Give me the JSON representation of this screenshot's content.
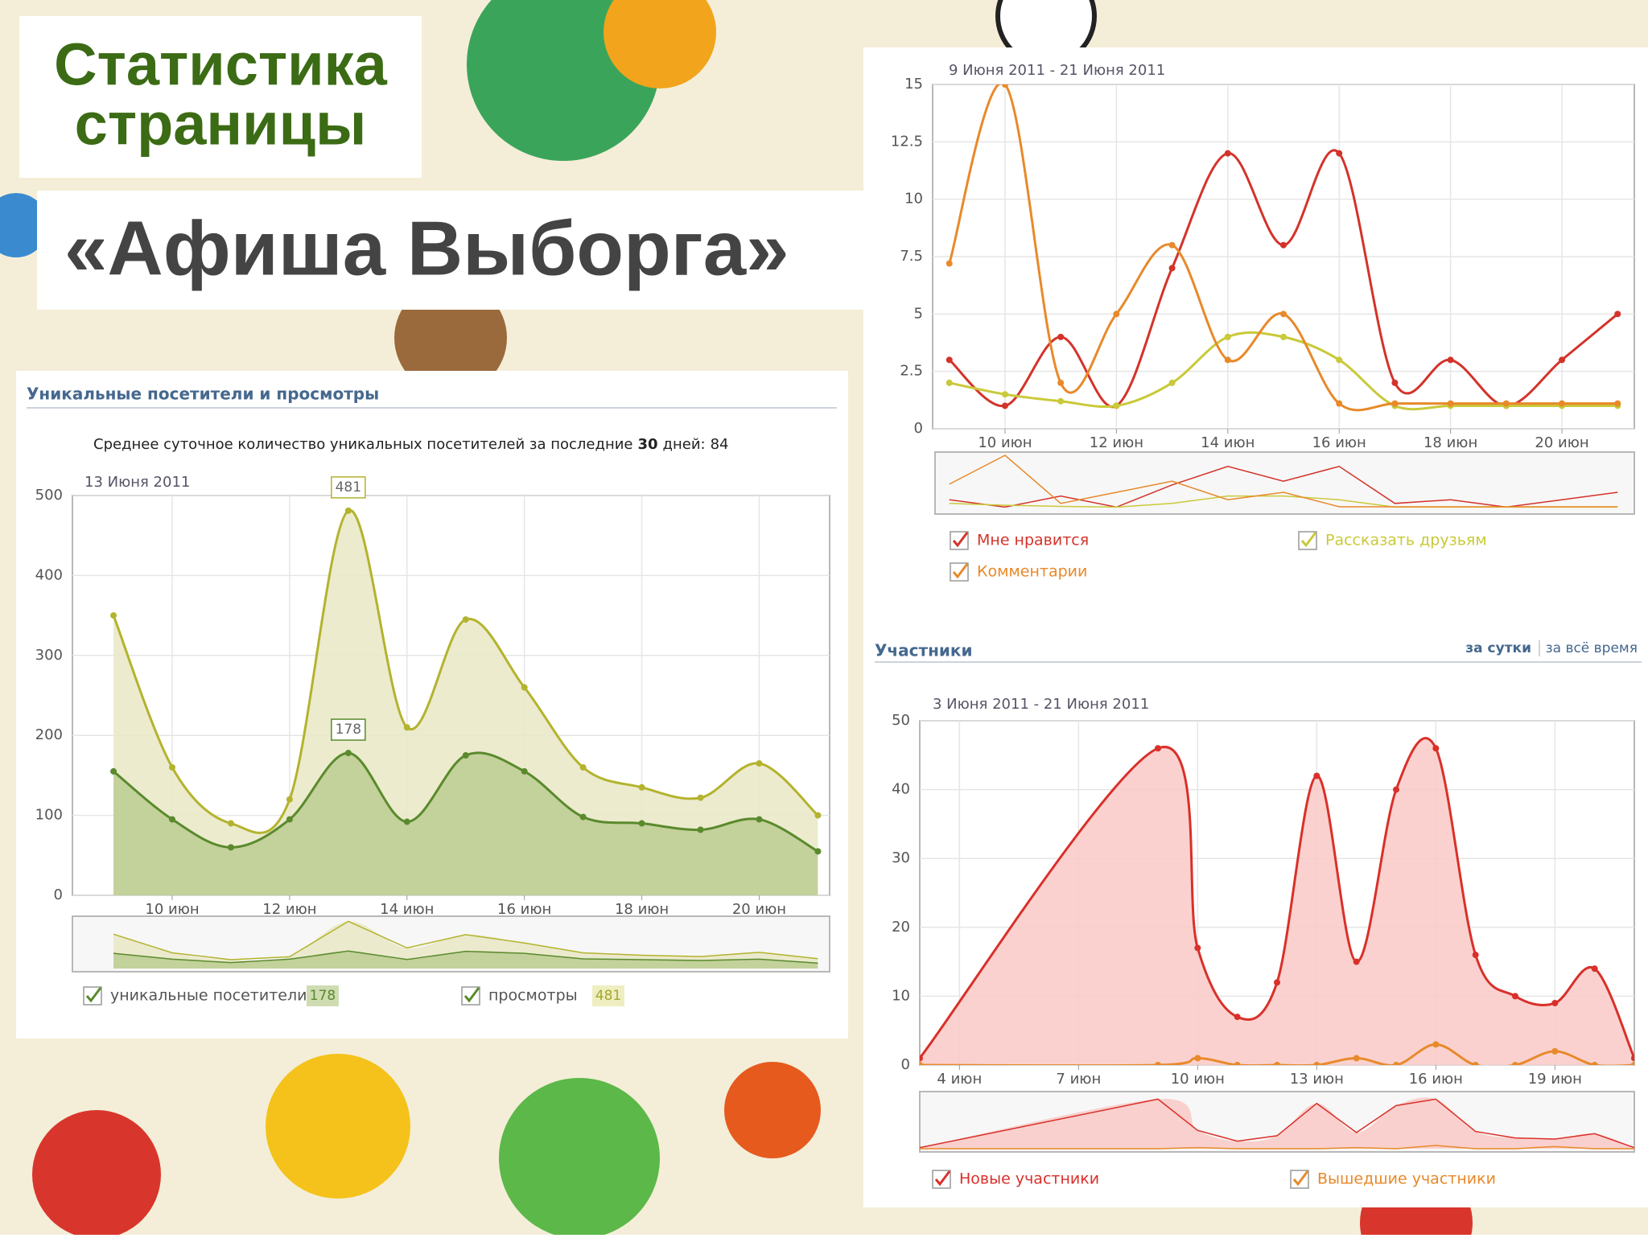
{
  "header": {
    "title_line1": "Статистика",
    "title_line2": "страницы",
    "subtitle": "«Афиша Выборга»"
  },
  "chart_data": [
    {
      "type": "area",
      "title": "Уникальные посетители и просмотры",
      "note": {
        "text_before": "Среднее суточное количество уникальных посетителей за последние",
        "days": 30,
        "text_after": "дней:",
        "average": 84
      },
      "date_label": "13 Июня 2011",
      "x": [
        9,
        10,
        11,
        12,
        13,
        14,
        15,
        16,
        17,
        18,
        19,
        20,
        21
      ],
      "xlim": [
        8.3,
        21.2
      ],
      "xticks": [
        {
          "value": 10,
          "label": "10 июн"
        },
        {
          "value": 12,
          "label": "12 июн"
        },
        {
          "value": 14,
          "label": "14 июн"
        },
        {
          "value": 16,
          "label": "16 июн"
        },
        {
          "value": 18,
          "label": "18 июн"
        },
        {
          "value": 20,
          "label": "20 июн"
        }
      ],
      "ylim": [
        0,
        500
      ],
      "yticks": [
        0,
        100,
        200,
        300,
        400,
        500
      ],
      "grid": true,
      "series": [
        {
          "name": "просмотры",
          "color": "#b3b32e",
          "area_color": "#e9e7c6",
          "values": [
            350,
            160,
            90,
            120,
            481,
            210,
            345,
            260,
            160,
            135,
            122,
            165,
            100
          ]
        },
        {
          "name": "уникальные посетители",
          "color": "#5a8a2c",
          "area_color": "#bccd92",
          "values": [
            155,
            95,
            60,
            95,
            178,
            92,
            175,
            155,
            98,
            90,
            82,
            95,
            55
          ]
        }
      ]
    },
    {
      "type": "line",
      "date_label": "9 Июня 2011 - 21 Июня 2011",
      "x": [
        9,
        10,
        11,
        12,
        13,
        14,
        15,
        16,
        17,
        18,
        19,
        20,
        21
      ],
      "xlim": [
        8.7,
        21.3
      ],
      "xticks": [
        {
          "value": 10,
          "label": "10 июн"
        },
        {
          "value": 12,
          "label": "12 июн"
        },
        {
          "value": 14,
          "label": "14 июн"
        },
        {
          "value": 16,
          "label": "16 июн"
        },
        {
          "value": 18,
          "label": "18 июн"
        },
        {
          "value": 20,
          "label": "20 июн"
        }
      ],
      "ylim": [
        0,
        15
      ],
      "yticks": [
        0,
        2.5,
        5,
        7.5,
        10,
        12.5,
        15
      ],
      "grid": true,
      "series": [
        {
          "name": "Мне нравится",
          "color": "#d3332a",
          "values": [
            3,
            1,
            4,
            1,
            7,
            12,
            8,
            12,
            2,
            3,
            1,
            3,
            5
          ]
        },
        {
          "name": "Рассказать друзьям",
          "color": "#c9c93a",
          "values": [
            2,
            1.5,
            1.2,
            1,
            2,
            4,
            4,
            3,
            1,
            1,
            1,
            1,
            1
          ]
        },
        {
          "name": "Комментарии",
          "color": "#e8892a",
          "values": [
            7.2,
            15,
            2,
            5,
            8,
            3,
            5,
            1.1,
            1.1,
            1.1,
            1.1,
            1.1,
            1.1
          ]
        }
      ]
    },
    {
      "type": "area",
      "title": "Участники",
      "tabs": [
        "за сутки",
        "за всё время"
      ],
      "date_label": "3 Июня 2011 - 21 Июня 2011",
      "x": [
        3,
        9,
        10,
        11,
        12,
        13,
        14,
        15,
        16,
        17,
        18,
        19,
        20,
        21
      ],
      "xlim": [
        3,
        21
      ],
      "xticks": [
        {
          "value": 4,
          "label": "4 июн"
        },
        {
          "value": 7,
          "label": "7 июн"
        },
        {
          "value": 10,
          "label": "10 июн"
        },
        {
          "value": 13,
          "label": "13 июн"
        },
        {
          "value": 16,
          "label": "16 июн"
        },
        {
          "value": 19,
          "label": "19 июн"
        }
      ],
      "ylim": [
        0,
        50
      ],
      "yticks": [
        0,
        10,
        20,
        30,
        40,
        50
      ],
      "grid": true,
      "series": [
        {
          "name": "Новые участники",
          "color": "#d9302a",
          "area_color": "#f9c9c5",
          "values": [
            1,
            46,
            17,
            7,
            12,
            42,
            15,
            40,
            46,
            16,
            10,
            9,
            14,
            1
          ]
        },
        {
          "name": "Вышедшие участники",
          "color": "#e8892a",
          "values": [
            0,
            0,
            1,
            0,
            0,
            0,
            1,
            0,
            3,
            0,
            0,
            2,
            0,
            0
          ]
        }
      ]
    }
  ]
}
